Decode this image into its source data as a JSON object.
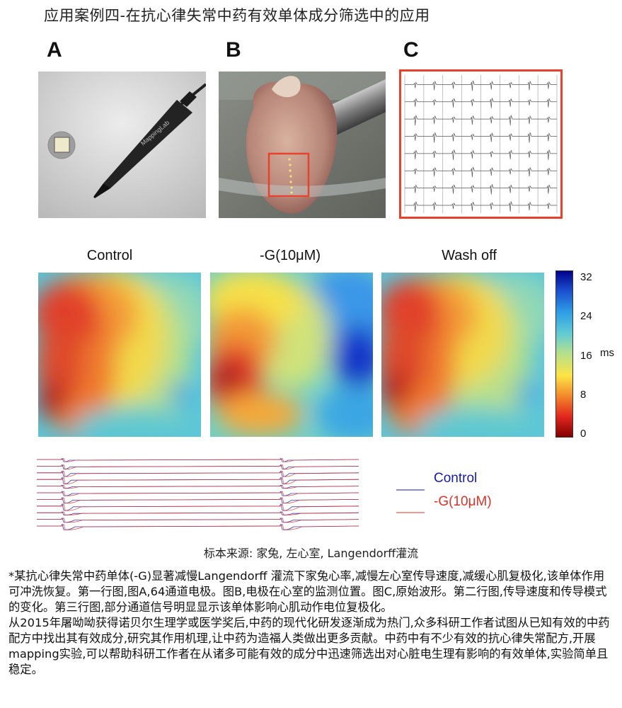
{
  "title": "应用案例四-在抗心律失常中药有效单体成分筛选中的应用",
  "panels": {
    "a_label": "A",
    "b_label": "B",
    "c_label": "C",
    "probe_brand": "MappingLab"
  },
  "maps": {
    "control_title": "Control",
    "drug_title": "-G(10μM)",
    "wash_title": "Wash off"
  },
  "colorbar": {
    "ticks": [
      "32",
      "24",
      "16",
      "8",
      "0"
    ],
    "unit": "ms",
    "range": [
      0,
      32
    ]
  },
  "traces_legend": {
    "control_label": "Control",
    "drug_label": "-G(10μM)",
    "control_color": "#1a1aa8",
    "drug_color": "#d9342b"
  },
  "source_text": "标本来源: 家兔,  左心室,     Langendorff灌流",
  "description": {
    "para1": "*某抗心律失常中药单体(-G)显著减慢Langendorff 灌流下家兔心率,减慢左心室传导速度,减缓心肌复极化,该单体作用可冲洗恢复。第一行图,图A,64通道电极。图B,电极在心室的监测位置。图C,原始波形。第二行图,传导速度和传导模式的变化。第三行图,部分通道信号明显显示该单体影响心肌动作电位复极化。",
    "para2": "从2015年屠呦呦获得诺贝尔生理学或医学奖后,中药的现代化研发逐渐成为热门,众多科研工作者试图从已知有效的中药配方中找出其有效成分,研究其作用机理,让中药为造福人类做出更多贡献。中药中有不少有效的抗心律失常配方,开展mapping实验,可以帮助科研工作者在从诸多可能有效的成分中迅速筛选出对心脏电生理有影响的有效单体,实验简单且稳定。"
  },
  "colors": {
    "accent_red": "#e8412c",
    "grid_line": "#555555"
  }
}
